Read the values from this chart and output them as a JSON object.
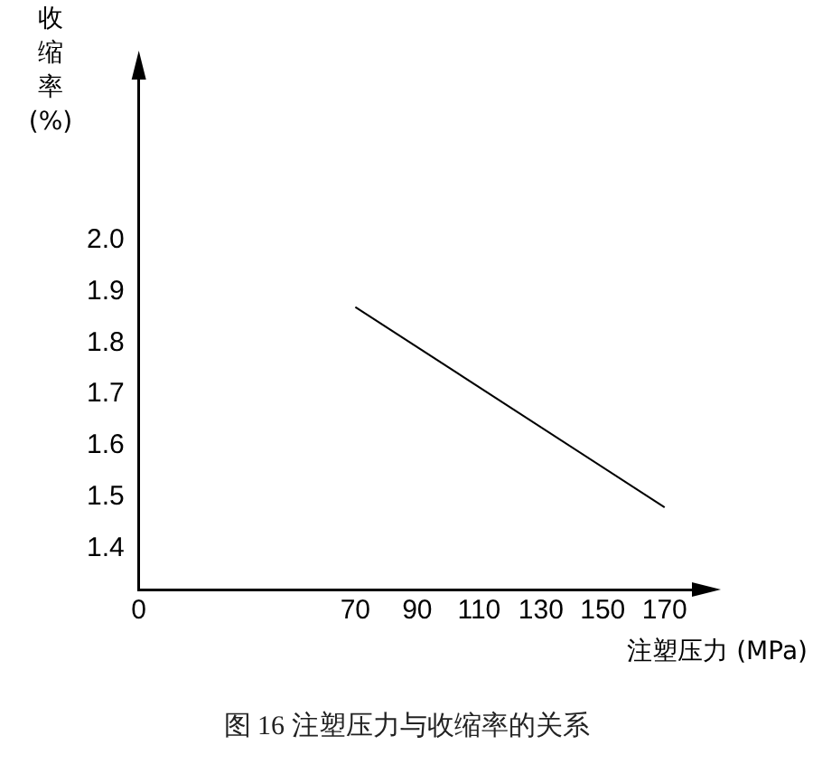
{
  "chart_data": {
    "type": "line",
    "title": "图 16 注塑压力与收缩率的关系",
    "xlabel": "注塑压力 (MPa)",
    "ylabel": "收缩率 (%)",
    "x": [
      70,
      170
    ],
    "series": [
      {
        "color": "#000000",
        "values": [
          1.87,
          1.48
        ]
      }
    ],
    "xlim": [
      0,
      180
    ],
    "xticks": [
      0,
      70,
      90,
      110,
      130,
      150,
      170
    ],
    "ylim": [
      1.32,
      2.32
    ],
    "yticks": [
      1.4,
      1.5,
      1.6,
      1.7,
      1.8,
      1.9,
      {
        "value": 2,
        "label": "2.0"
      }
    ],
    "grid": false,
    "legend": false,
    "marker": "none",
    "line_style": "solid"
  }
}
